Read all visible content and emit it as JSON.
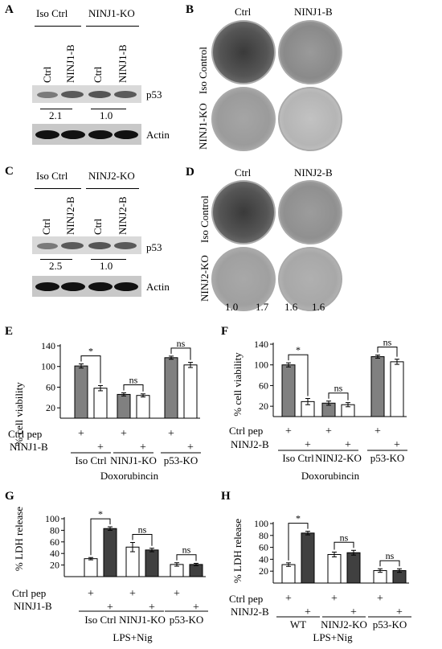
{
  "panels": {
    "A": {
      "label": "A",
      "groups": [
        "Iso Ctrl",
        "NINJ1-KO"
      ],
      "lanes": [
        "Ctrl",
        "NINJ1-B",
        "Ctrl",
        "NINJ1-B"
      ],
      "protein_top": "p53",
      "protein_bottom": "Actin",
      "ratios": [
        "2.1",
        "1.0"
      ]
    },
    "B": {
      "label": "B",
      "cols": [
        "Ctrl",
        "NINJ1-B"
      ],
      "rows": [
        "Iso Control",
        "NINJ1-KO"
      ]
    },
    "C": {
      "label": "C",
      "groups": [
        "Iso Ctrl",
        "NINJ2-KO"
      ],
      "lanes": [
        "Ctrl",
        "NINJ2-B",
        "Ctrl",
        "NINJ2-B"
      ],
      "protein_top": "p53",
      "protein_bottom": "Actin",
      "ratios": [
        "2.5",
        "1.0"
      ]
    },
    "D": {
      "label": "D",
      "cols": [
        "Ctrl",
        "NINJ2-B"
      ],
      "rows": [
        "Iso Control",
        "NINJ2-KO"
      ],
      "values": [
        "1.0",
        "1.7",
        "1.6",
        "1.6"
      ]
    }
  },
  "charts": {
    "E": {
      "label": "E",
      "ylabel": "% cell viability",
      "xlabel": "Doxorubincin",
      "row1": "Ctrl pep",
      "row2": "NINJ1-B",
      "groups": [
        "Iso Ctrl",
        "NINJ1-KO",
        "p53-KO"
      ],
      "sig": [
        "*",
        "ns",
        "ns"
      ]
    },
    "F": {
      "label": "F",
      "ylabel": "% cell viability",
      "xlabel": "Doxorubincin",
      "row1": "Ctrl pep",
      "row2": "NINJ2-B",
      "groups": [
        "Iso Ctrl",
        "NINJ2-KO",
        "p53-KO"
      ],
      "sig": [
        "*",
        "ns",
        "ns"
      ]
    },
    "G": {
      "label": "G",
      "ylabel": "% LDH release",
      "xlabel": "LPS+Nig",
      "row1": "Ctrl pep",
      "row2": "NINJ1-B",
      "groups": [
        "Iso Ctrl",
        "NINJ1-KO",
        "p53-KO"
      ],
      "sig": [
        "*",
        "ns",
        "ns"
      ]
    },
    "H": {
      "label": "H",
      "ylabel": "% LDH release",
      "xlabel": "LPS+Nig",
      "row1": "Ctrl pep",
      "row2": "NINJ2-B",
      "groups": [
        "WT",
        "NINJ2-KO",
        "p53-KO"
      ],
      "sig": [
        "*",
        "ns",
        "ns"
      ]
    }
  },
  "plus": "+",
  "chart_data": [
    {
      "type": "bar",
      "panel": "E",
      "ylim": [
        0,
        140
      ],
      "yticks": [
        20,
        60,
        100,
        140
      ],
      "categories": [
        "Iso Ctrl",
        "NINJ1-KO",
        "p53-KO"
      ],
      "series": [
        {
          "values": [
            101,
            46,
            117
          ],
          "errors": [
            4,
            3,
            3
          ],
          "color": "#808080"
        },
        {
          "values": [
            58,
            44,
            103
          ],
          "errors": [
            5,
            3,
            5
          ],
          "color": "#ffffff"
        }
      ]
    },
    {
      "type": "bar",
      "panel": "F",
      "ylim": [
        0,
        140
      ],
      "yticks": [
        20,
        60,
        100,
        140
      ],
      "categories": [
        "Iso Ctrl",
        "NINJ2-KO",
        "p53-KO"
      ],
      "series": [
        {
          "values": [
            100,
            26,
            116
          ],
          "errors": [
            4,
            4,
            3
          ],
          "color": "#808080"
        },
        {
          "values": [
            29,
            23,
            106
          ],
          "errors": [
            6,
            4,
            5
          ],
          "color": "#ffffff"
        }
      ]
    },
    {
      "type": "bar",
      "panel": "G",
      "ylim": [
        0,
        100
      ],
      "yticks": [
        20,
        40,
        60,
        80,
        100
      ],
      "categories": [
        "Iso Ctrl",
        "NINJ1-KO",
        "p53-KO"
      ],
      "series": [
        {
          "values": [
            31,
            51,
            21
          ],
          "errors": [
            2,
            8,
            3
          ],
          "color": "#ffffff"
        },
        {
          "values": [
            83,
            46,
            21
          ],
          "errors": [
            3,
            3,
            2
          ],
          "color": "#404040"
        }
      ]
    },
    {
      "type": "bar",
      "panel": "H",
      "ylim": [
        0,
        100
      ],
      "yticks": [
        20,
        40,
        60,
        80,
        100
      ],
      "categories": [
        "WT",
        "NINJ2-KO",
        "p53-KO"
      ],
      "series": [
        {
          "values": [
            31,
            48,
            21
          ],
          "errors": [
            3,
            4,
            3
          ],
          "color": "#ffffff"
        },
        {
          "values": [
            84,
            51,
            21
          ],
          "errors": [
            3,
            4,
            3
          ],
          "color": "#404040"
        }
      ]
    }
  ]
}
